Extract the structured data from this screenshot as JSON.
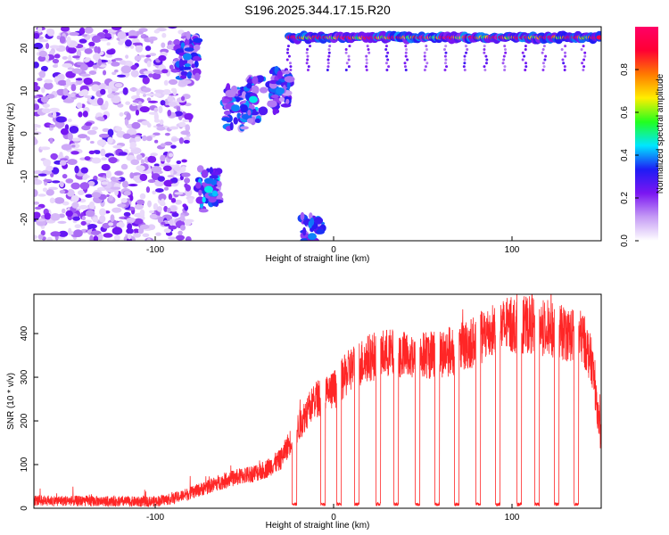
{
  "title": "S196.2025.344.17.15.R20",
  "chart_data": [
    {
      "type": "heatmap",
      "xlabel": "Height of straight line (km)",
      "ylabel": "Frequency (Hz)",
      "xlim": [
        -168,
        150
      ],
      "ylim": [
        -25,
        25
      ],
      "x_ticks": [
        -100,
        0,
        100
      ],
      "y_ticks": [
        -20,
        -10,
        0,
        10,
        20
      ],
      "colorbar": {
        "label": "Normalized spectral amplitude",
        "range": [
          0,
          1
        ],
        "ticks": [
          0.0,
          0.2,
          0.4,
          0.6,
          0.8
        ],
        "colormap": [
          "#ffffff",
          "#c59bf5",
          "#7b16f2",
          "#1e1cf5",
          "#00e6ff",
          "#22ff1e",
          "#ffee00",
          "#ff7a00",
          "#ff0033",
          "#ff0066"
        ]
      },
      "features": [
        {
          "x_range": [
            -168,
            -80
          ],
          "y_range": [
            -25,
            25
          ],
          "amplitude": 0.15,
          "pattern": "scattered"
        },
        {
          "x": -82,
          "y": 18,
          "amplitude": 0.3
        },
        {
          "x": -70,
          "y": -13,
          "amplitude": 0.35
        },
        {
          "x": -55,
          "y": 6,
          "amplitude": 0.3
        },
        {
          "x": -45,
          "y": 8,
          "amplitude": 0.35
        },
        {
          "x": -30,
          "y": 10,
          "amplitude": 0.3
        },
        {
          "x_range": [
            -25,
            150
          ],
          "y": 22.5,
          "amplitude": 0.95,
          "pattern": "band"
        },
        {
          "x": -12,
          "y": -24,
          "amplitude": 0.3
        }
      ]
    },
    {
      "type": "line",
      "xlabel": "Height of straight line (km)",
      "ylabel": "SNR (10 * v/v)",
      "xlim": [
        -168,
        150
      ],
      "ylim": [
        0,
        490
      ],
      "x_ticks": [
        -100,
        0,
        100
      ],
      "y_ticks": [
        0,
        100,
        200,
        300,
        400
      ],
      "series": [
        {
          "color": "#ff0000",
          "x": [
            -168,
            -150,
            -130,
            -110,
            -100,
            -90,
            -80,
            -70,
            -60,
            -50,
            -40,
            -30,
            -22,
            -15,
            -10,
            -5,
            0,
            10,
            20,
            30,
            40,
            50,
            60,
            70,
            80,
            90,
            100,
            110,
            120,
            130,
            140,
            145,
            150
          ],
          "values": [
            18,
            17,
            16,
            15,
            16,
            22,
            35,
            50,
            65,
            75,
            85,
            110,
            170,
            220,
            250,
            260,
            270,
            320,
            345,
            355,
            350,
            350,
            355,
            365,
            385,
            410,
            420,
            420,
            410,
            400,
            390,
            330,
            150
          ],
          "noise_amplitude": 40,
          "dropouts_x": [
            -22,
            -6,
            3,
            13,
            25,
            35,
            47,
            58,
            69,
            81,
            92,
            104,
            114,
            125,
            136
          ]
        }
      ]
    }
  ]
}
